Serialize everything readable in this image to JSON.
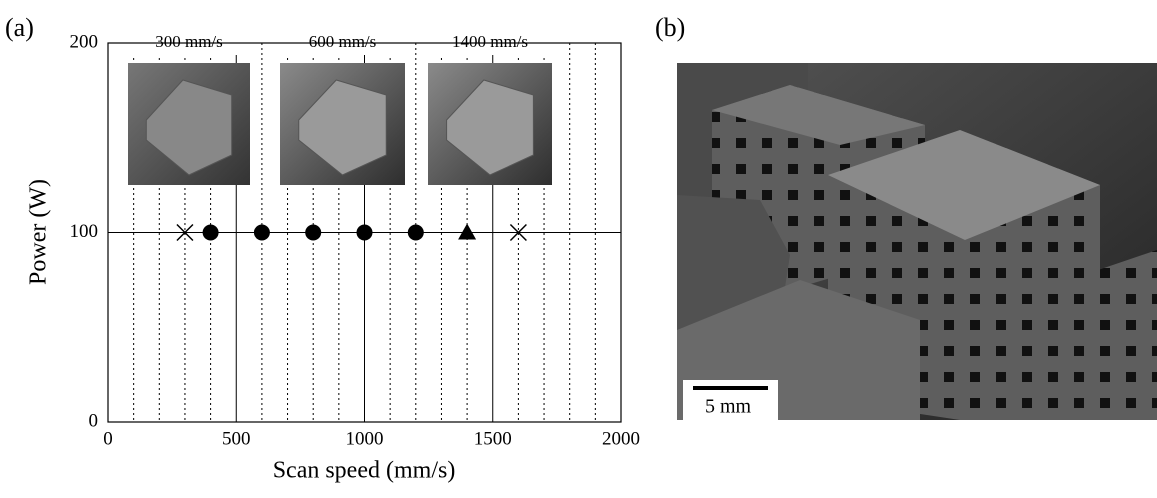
{
  "chart_data": {
    "type": "scatter",
    "panel_label": "(a)",
    "xlabel": "Scan speed (mm/s)",
    "ylabel": "Power (W)",
    "xlim": [
      0,
      2000
    ],
    "ylim": [
      0,
      200
    ],
    "xticks": [
      0,
      500,
      1000,
      1500,
      2000
    ],
    "yticks": [
      0,
      100,
      200
    ],
    "xgrid_minor": [
      100,
      200,
      300,
      400,
      600,
      700,
      800,
      900,
      1100,
      1200,
      1300,
      1400,
      1600,
      1700,
      1800,
      1900
    ],
    "color": "#000000",
    "series": [
      {
        "marker": "x",
        "x": [
          300,
          1600
        ],
        "values": [
          100,
          100
        ]
      },
      {
        "marker": "circle",
        "x": [
          400,
          600,
          800,
          1000,
          1200
        ],
        "values": [
          100,
          100,
          100,
          100,
          100
        ]
      },
      {
        "marker": "triangle",
        "x": [
          1400
        ],
        "values": [
          100
        ]
      }
    ],
    "annotations": [
      "300 mm/s",
      "600 mm/s",
      "1400 mm/s"
    ]
  },
  "photo": {
    "panel_label": "(b)",
    "scale_bar": "5 mm"
  }
}
